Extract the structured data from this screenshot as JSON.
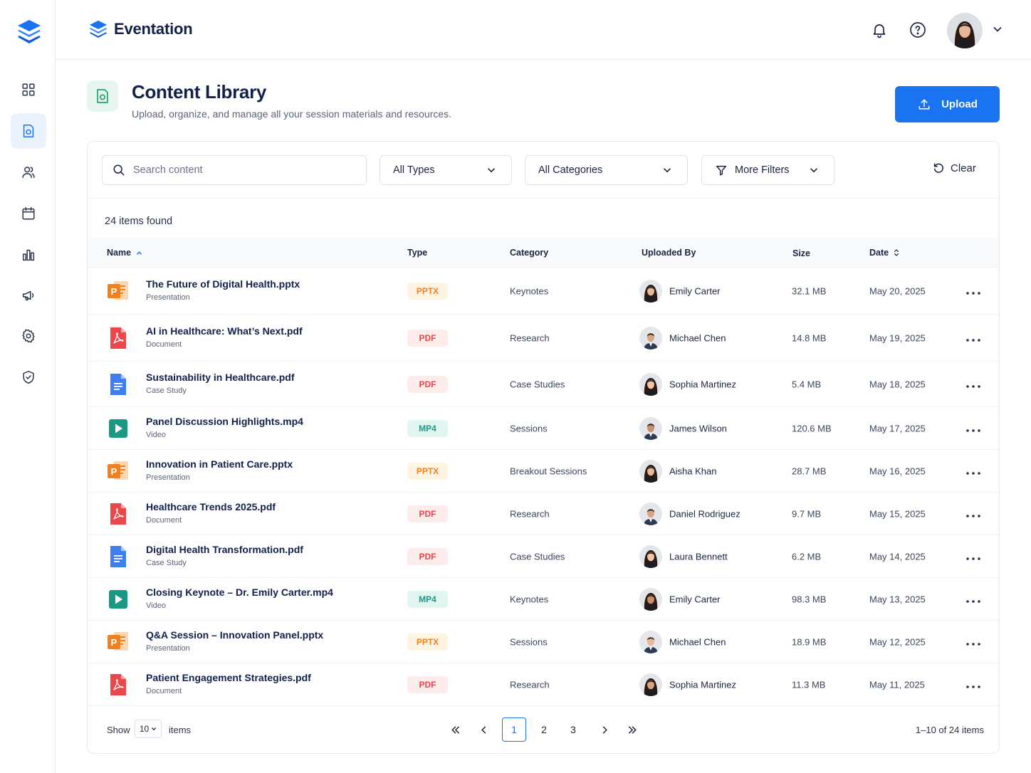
{
  "app": {
    "name": "Eventation"
  },
  "sidebar": {
    "items": [
      {
        "icon": "grid-icon",
        "name": "dashboard",
        "active": false
      },
      {
        "icon": "content-library-icon",
        "name": "content",
        "active": true
      },
      {
        "icon": "users-icon",
        "name": "people",
        "active": false
      },
      {
        "icon": "calendar-icon",
        "name": "calendar",
        "active": false
      },
      {
        "icon": "chart-icon",
        "name": "analytics",
        "active": false
      },
      {
        "icon": "megaphone-icon",
        "name": "marketing",
        "active": false
      },
      {
        "icon": "gear-icon",
        "name": "settings",
        "active": false
      },
      {
        "icon": "shield-icon",
        "name": "security",
        "active": false
      }
    ]
  },
  "page": {
    "title": "Content Library",
    "subtitle": "Upload, organize, and manage all your session materials and resources.",
    "upload_label": "Upload"
  },
  "filters": {
    "search_placeholder": "Search content",
    "type": "All Types",
    "category": "All Categories",
    "more": "More Filters",
    "clear": "Clear"
  },
  "results_text": "24 items found",
  "table": {
    "columns": [
      "Name",
      "Type",
      "Category",
      "Uploaded By",
      "Size",
      "Date"
    ],
    "rows": [
      {
        "name": "The Future of Digital Health.pptx",
        "kind": "Presentation",
        "type": "PPTX",
        "category": "Keynotes",
        "user": "Emily Carter",
        "gender": "f",
        "size": "32.1 MB",
        "date": "May 20, 2025"
      },
      {
        "name": "AI in Healthcare: What’s Next.pdf",
        "kind": "Document",
        "type": "PDF",
        "category": "Research",
        "user": "Michael Chen",
        "gender": "m",
        "size": "14.8 MB",
        "date": "May 19, 2025"
      },
      {
        "name": "Sustainability in Healthcare.pdf",
        "kind": "Case Study",
        "type": "PDF",
        "category": "Case Studies",
        "user": "Sophia Martinez",
        "gender": "f",
        "size": "5.4 MB",
        "date": "May 18, 2025"
      },
      {
        "name": "Panel Discussion Highlights.mp4",
        "kind": "Video",
        "type": "MP4",
        "category": "Sessions",
        "user": "James Wilson",
        "gender": "m",
        "size": "120.6 MB",
        "date": "May 17, 2025"
      },
      {
        "name": "Innovation in Patient Care.pptx",
        "kind": "Presentation",
        "type": "PPTX",
        "category": "Breakout Sessions",
        "user": "Aisha Khan",
        "gender": "f",
        "size": "28.7 MB",
        "date": "May 16, 2025"
      },
      {
        "name": "Healthcare Trends 2025.pdf",
        "kind": "Document",
        "type": "PDF",
        "category": "Research",
        "user": "Daniel Rodriguez",
        "gender": "m",
        "size": "9.7 MB",
        "date": "May 15, 2025"
      },
      {
        "name": "Digital Health Transformation.pdf",
        "kind": "Case Study",
        "type": "PDF",
        "category": "Case Studies",
        "user": "Laura Bennett",
        "gender": "f",
        "size": "6.2 MB",
        "date": "May 14, 2025"
      },
      {
        "name": "Closing Keynote – Dr. Emily Carter.mp4",
        "kind": "Video",
        "type": "MP4",
        "category": "Keynotes",
        "user": "Emily Carter",
        "gender": "f",
        "size": "98.3 MB",
        "date": "May 13, 2025"
      },
      {
        "name": "Q&A Session – Innovation Panel.pptx",
        "kind": "Presentation",
        "type": "PPTX",
        "category": "Sessions",
        "user": "Michael Chen",
        "gender": "m",
        "size": "18.9 MB",
        "date": "May 12, 2025"
      },
      {
        "name": "Patient Engagement Strategies.pdf",
        "kind": "Document",
        "type": "PDF",
        "category": "Research",
        "user": "Sophia Martinez",
        "gender": "f",
        "size": "11.3 MB",
        "date": "May 11, 2025"
      }
    ]
  },
  "pagination": {
    "show_label": "Show",
    "page_size": "10",
    "items_label": "items",
    "pages": [
      "1",
      "2",
      "3"
    ],
    "current_page": "1",
    "range_text": "1–10 of 24 items"
  },
  "colors": {
    "accent": "#1a73f0",
    "pptx": "#f0811f",
    "pdf": "#e9474a",
    "mp4": "#1a9a85",
    "doc_blue": "#3f7ef0"
  }
}
